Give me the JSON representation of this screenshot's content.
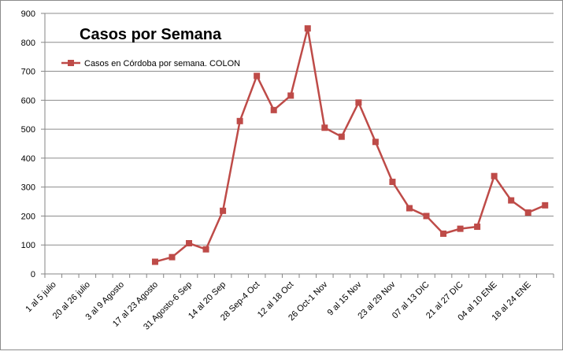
{
  "chart_data": {
    "type": "line",
    "title": "Casos por Semana",
    "xlabel": "",
    "ylabel": "",
    "ylim": [
      0,
      900
    ],
    "yticks": [
      0,
      100,
      200,
      300,
      400,
      500,
      600,
      700,
      800,
      900
    ],
    "grid": true,
    "legend_position": "top-left",
    "categories": [
      "1 al 5 julio",
      "",
      "20 al 26 julio",
      "",
      "3 al 9 Agosto",
      "",
      "17 al 23 Agosto",
      "",
      "31 Agosto-6 Sep",
      "",
      "14 al 20 Sep",
      "",
      "28 Sep-4 Oct",
      "",
      "12 al 18 Oct",
      "",
      "26 Oct-1 Nov",
      "",
      "9 al 15 Nov",
      "",
      "23 al 29 Nov",
      "",
      "07 al 13 DIC",
      "",
      "21 al 27 DIC",
      "",
      "04 al 10 ENE",
      "",
      "18 al 24 ENE",
      ""
    ],
    "series": [
      {
        "name": "Casos en Córdoba por semana. COLON",
        "color": "#be4b48",
        "values": [
          null,
          null,
          null,
          null,
          null,
          null,
          42,
          58,
          106,
          85,
          218,
          528,
          684,
          566,
          616,
          848,
          505,
          474,
          592,
          456,
          318,
          227,
          200,
          139,
          156,
          163,
          338,
          254,
          212,
          237
        ]
      }
    ]
  }
}
